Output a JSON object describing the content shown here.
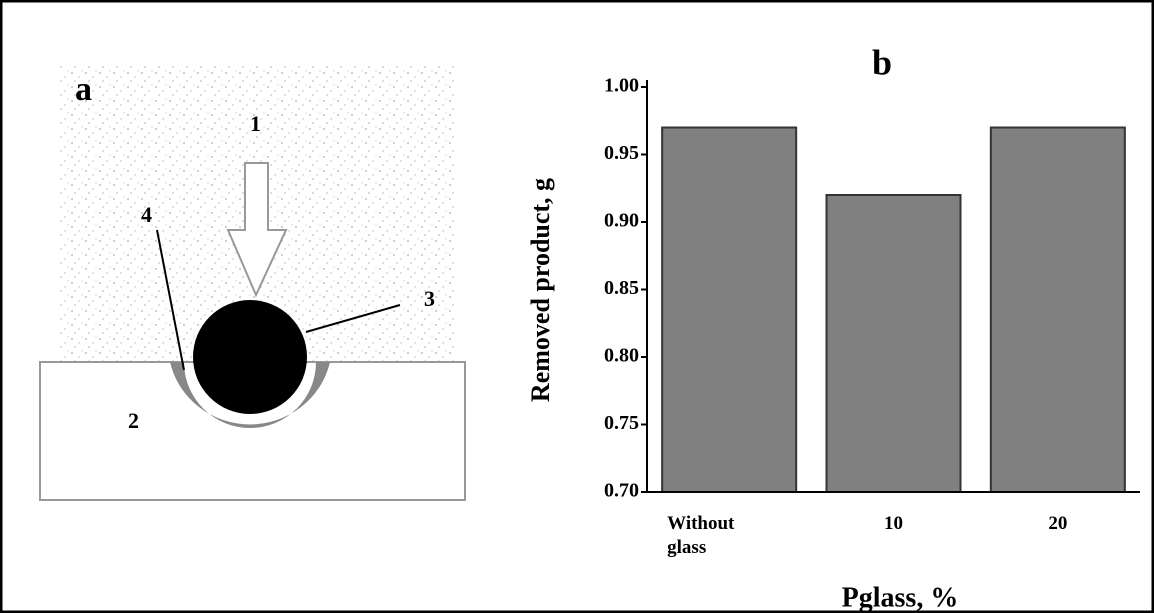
{
  "diagram": {
    "label": "a",
    "items": [
      "1",
      "2",
      "3",
      "4"
    ]
  },
  "chart_data": {
    "type": "bar",
    "title": "b",
    "categories": [
      "Without glass",
      "10",
      "20"
    ],
    "values": [
      0.97,
      0.92,
      0.97
    ],
    "color": "#808080",
    "xlabel": "Pglass, %",
    "ylabel": "Removed product, g",
    "ylim": [
      0.7,
      1.0
    ],
    "yticks": [
      {
        "value": 0.7,
        "label": "0.70"
      },
      0.75,
      {
        "value": 0.8,
        "label": "0.80"
      },
      0.85,
      {
        "value": 0.9,
        "label": "0.90"
      },
      0.95,
      {
        "value": 1.0,
        "label": "1.00"
      }
    ],
    "grid": false
  }
}
